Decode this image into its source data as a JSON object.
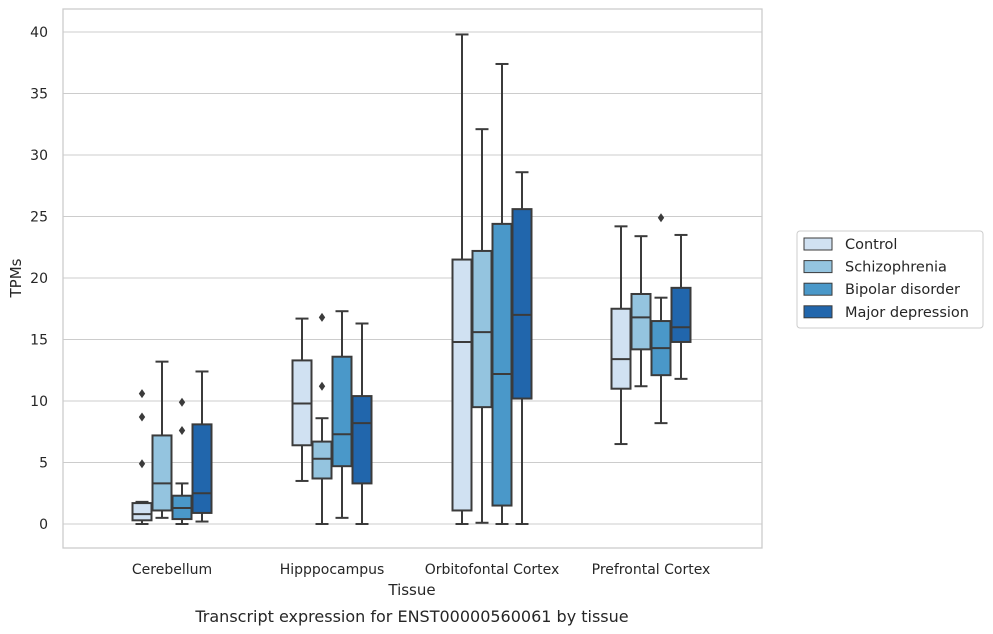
{
  "chart_data": {
    "type": "box",
    "title": "",
    "xlabel": "Tissue",
    "ylabel": "TPMs",
    "caption": "Transcript expression for ENST00000560061 by tissue",
    "ylim": [
      -2,
      42
    ],
    "yticks": [
      0,
      5,
      10,
      15,
      20,
      25,
      30,
      35,
      40
    ],
    "grid": "horizontal",
    "legend_position": "right",
    "categories": [
      "Cerebellum",
      "Hipppocampus",
      "Orbitofontal Cortex",
      "Prefrontal Cortex"
    ],
    "series": [
      {
        "name": "Control",
        "color": "#d0e1f2",
        "boxes": [
          {
            "whislo": 0,
            "q1": 0.3,
            "median": 0.8,
            "q3": 1.7,
            "whishi": 1.8,
            "fliers": [
              4.9,
              8.7,
              10.6
            ]
          },
          {
            "whislo": 3.5,
            "q1": 6.4,
            "median": 9.8,
            "q3": 13.3,
            "whishi": 16.7,
            "fliers": []
          },
          {
            "whislo": 0,
            "q1": 1.1,
            "median": 14.8,
            "q3": 21.5,
            "whishi": 39.8,
            "fliers": []
          },
          {
            "whislo": 6.5,
            "q1": 11.0,
            "median": 13.4,
            "q3": 17.5,
            "whishi": 24.2,
            "fliers": []
          }
        ]
      },
      {
        "name": "Schizophrenia",
        "color": "#94c4df",
        "boxes": [
          {
            "whislo": 0.5,
            "q1": 1.1,
            "median": 3.3,
            "q3": 7.2,
            "whishi": 13.2,
            "fliers": []
          },
          {
            "whislo": 0,
            "q1": 3.7,
            "median": 5.3,
            "q3": 6.7,
            "whishi": 8.6,
            "fliers": [
              11.2,
              16.8
            ]
          },
          {
            "whislo": 0.1,
            "q1": 9.5,
            "median": 15.6,
            "q3": 22.2,
            "whishi": 32.1,
            "fliers": []
          },
          {
            "whislo": 11.2,
            "q1": 14.2,
            "median": 16.8,
            "q3": 18.7,
            "whishi": 23.4,
            "fliers": []
          }
        ]
      },
      {
        "name": "Bipolar disorder",
        "color": "#4a98c9",
        "boxes": [
          {
            "whislo": 0,
            "q1": 0.4,
            "median": 1.3,
            "q3": 2.3,
            "whishi": 3.3,
            "fliers": [
              7.6,
              9.9
            ]
          },
          {
            "whislo": 0.5,
            "q1": 4.7,
            "median": 7.3,
            "q3": 13.6,
            "whishi": 17.3,
            "fliers": []
          },
          {
            "whislo": 0,
            "q1": 1.5,
            "median": 12.2,
            "q3": 24.4,
            "whishi": 37.4,
            "fliers": []
          },
          {
            "whislo": 8.2,
            "q1": 12.1,
            "median": 14.3,
            "q3": 16.5,
            "whishi": 18.4,
            "fliers": [
              24.9
            ]
          }
        ]
      },
      {
        "name": "Major depression",
        "color": "#2166ac",
        "boxes": [
          {
            "whislo": 0.2,
            "q1": 0.9,
            "median": 2.5,
            "q3": 8.1,
            "whishi": 12.4,
            "fliers": []
          },
          {
            "whislo": 0,
            "q1": 3.3,
            "median": 8.2,
            "q3": 10.4,
            "whishi": 16.3,
            "fliers": []
          },
          {
            "whislo": 0,
            "q1": 10.2,
            "median": 17.0,
            "q3": 25.6,
            "whishi": 28.6,
            "fliers": []
          },
          {
            "whislo": 11.8,
            "q1": 14.8,
            "median": 16.0,
            "q3": 19.2,
            "whishi": 23.5,
            "fliers": []
          }
        ]
      }
    ]
  }
}
